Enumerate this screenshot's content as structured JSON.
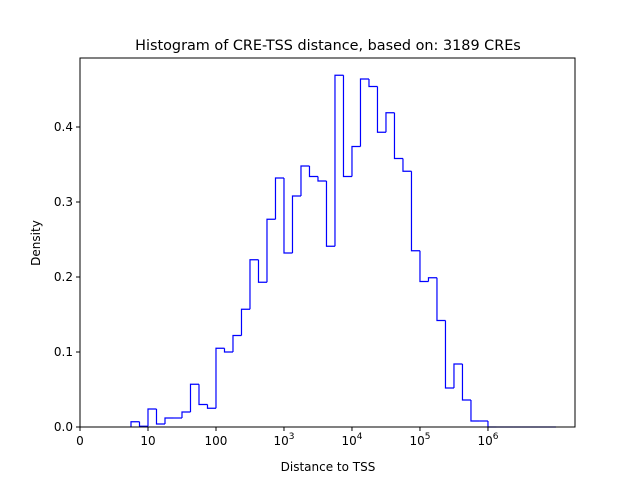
{
  "chart_data": {
    "type": "bar",
    "style": "step-histogram",
    "title": "Histogram of CRE-TSS distance, based on: 3189 CREs",
    "xlabel": "Distance to TSS",
    "ylabel": "Density",
    "x_scale": "log10",
    "xlim": [
      0,
      7.28
    ],
    "ylim": [
      0,
      0.492
    ],
    "grid": false,
    "line_color": "#0000ff",
    "bin_start": 0.75,
    "bin_width": 0.125,
    "values": [
      0.007,
      0.001,
      0.024,
      0.004,
      0.012,
      0.012,
      0.02,
      0.057,
      0.03,
      0.025,
      0.105,
      0.1,
      0.122,
      0.157,
      0.223,
      0.193,
      0.277,
      0.332,
      0.232,
      0.308,
      0.348,
      0.334,
      0.328,
      0.241,
      0.469,
      0.334,
      0.374,
      0.464,
      0.454,
      0.393,
      0.419,
      0.358,
      0.341,
      0.235,
      0.194,
      0.199,
      0.142,
      0.052,
      0.084,
      0.036,
      0.008,
      0.008,
      0,
      0,
      0,
      0,
      0,
      0,
      0,
      0
    ],
    "x_ticks": [
      {
        "value": 0,
        "label": "0"
      },
      {
        "value": 1,
        "label": "10"
      },
      {
        "value": 2,
        "label": "100"
      },
      {
        "value": 3,
        "base": "10",
        "exp": "3"
      },
      {
        "value": 4,
        "base": "10",
        "exp": "4"
      },
      {
        "value": 5,
        "base": "10",
        "exp": "5"
      },
      {
        "value": 6,
        "base": "10",
        "exp": "6"
      }
    ],
    "y_ticks": [
      {
        "value": 0.0,
        "label": "0.0"
      },
      {
        "value": 0.1,
        "label": "0.1"
      },
      {
        "value": 0.2,
        "label": "0.2"
      },
      {
        "value": 0.3,
        "label": "0.3"
      },
      {
        "value": 0.4,
        "label": "0.4"
      }
    ]
  }
}
